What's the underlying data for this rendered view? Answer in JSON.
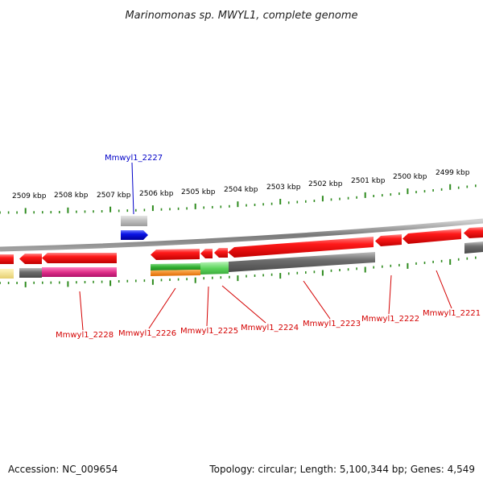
{
  "title": "Marinomonas sp. MWYL1, complete genome",
  "colors": {
    "backbone": "#8c8c8c",
    "tick": "#2e8b1e",
    "cds": "#e3000f",
    "cds_light": "#ff6666",
    "label_minus": "#d40000",
    "label_plus": "#0000c8",
    "rna": "#0a14e6",
    "green": "#33b233",
    "orange": "#f07f10",
    "grey": "#7a7a7a",
    "magenta": "#e0308a",
    "yellow": "#f2e38c"
  },
  "scale": {
    "labels": [
      "2509 kbp",
      "2508 kbp",
      "2507 kbp",
      "2506 kbp",
      "2505 kbp",
      "2504 kbp",
      "2503 kbp",
      "2502 kbp",
      "2501 kbp",
      "2500 kbp",
      "2499 kbp"
    ]
  },
  "genes": [
    {
      "name": "Mmwyl1_2221",
      "strand": "minus"
    },
    {
      "name": "Mmwyl1_2222",
      "strand": "minus"
    },
    {
      "name": "Mmwyl1_2223",
      "strand": "minus"
    },
    {
      "name": "Mmwyl1_2224",
      "strand": "minus"
    },
    {
      "name": "Mmwyl1_2225",
      "strand": "minus"
    },
    {
      "name": "Mmwyl1_2226",
      "strand": "minus"
    },
    {
      "name": "Mmwyl1_2227",
      "strand": "plus"
    },
    {
      "name": "Mmwyl1_2228",
      "strand": "minus"
    }
  ],
  "footer": {
    "accession": "Accession: NC_009654",
    "summary": "Topology: circular; Length: 5,100,344 bp; Genes: 4,549"
  }
}
